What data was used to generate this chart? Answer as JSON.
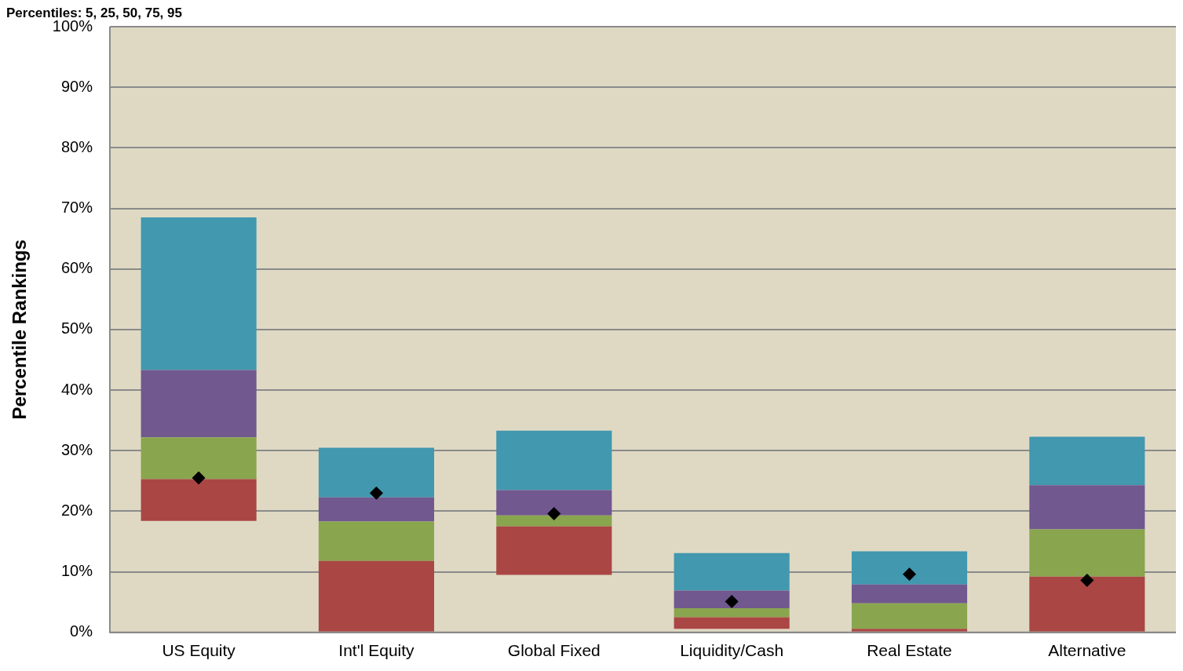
{
  "chart_data": {
    "type": "bar",
    "title": "Percentiles: 5, 25, 50, 75, 95",
    "ylabel": "Percentile Rankings",
    "categories": [
      "US Equity",
      "Int'l Equity",
      "Global Fixed",
      "Liquidity/Cash",
      "Real Estate",
      "Alternative"
    ],
    "series": [
      {
        "color": "#aa4644",
        "base": [
          18.4,
          0,
          9.5,
          0.6,
          0,
          0
        ],
        "values": [
          6.9,
          11.8,
          8.0,
          1.9,
          0.6,
          9.2
        ]
      },
      {
        "color": "#89a54e",
        "base": [
          25.3,
          11.8,
          17.5,
          2.5,
          0.6,
          9.2
        ],
        "values": [
          6.9,
          6.5,
          1.8,
          1.5,
          4.2,
          7.8
        ]
      },
      {
        "color": "#71588f",
        "base": [
          32.2,
          18.3,
          19.3,
          4.0,
          4.8,
          17.0
        ],
        "values": [
          11.1,
          4.0,
          4.2,
          2.9,
          3.1,
          7.3
        ]
      },
      {
        "color": "#4198af",
        "base": [
          43.3,
          22.3,
          23.5,
          6.9,
          7.9,
          24.3
        ],
        "values": [
          25.2,
          8.2,
          9.8,
          6.2,
          5.5,
          8.0
        ]
      },
      {
        "type": "scatter",
        "marker": "diamond",
        "color": "#000000",
        "x": [
          "US Equity",
          "Int'l Equity",
          "Global Fixed",
          "Liquidity/Cash",
          "Real Estate",
          "Alternative"
        ],
        "values": [
          25.5,
          23.0,
          19.6,
          5.1,
          9.6,
          8.6
        ]
      }
    ],
    "ylim": [
      0,
      100
    ],
    "yticks": [
      {
        "value": 0,
        "label": "0%"
      },
      {
        "value": 10,
        "label": "10%"
      },
      {
        "value": 20,
        "label": "20%"
      },
      {
        "value": 30,
        "label": "30%"
      },
      {
        "value": 40,
        "label": "40%"
      },
      {
        "value": 50,
        "label": "50%"
      },
      {
        "value": 60,
        "label": "60%"
      },
      {
        "value": 70,
        "label": "70%"
      },
      {
        "value": 80,
        "label": "80%"
      },
      {
        "value": 90,
        "label": "90%"
      },
      {
        "value": 100,
        "label": "100%"
      }
    ],
    "grid": "y",
    "legend": false
  }
}
